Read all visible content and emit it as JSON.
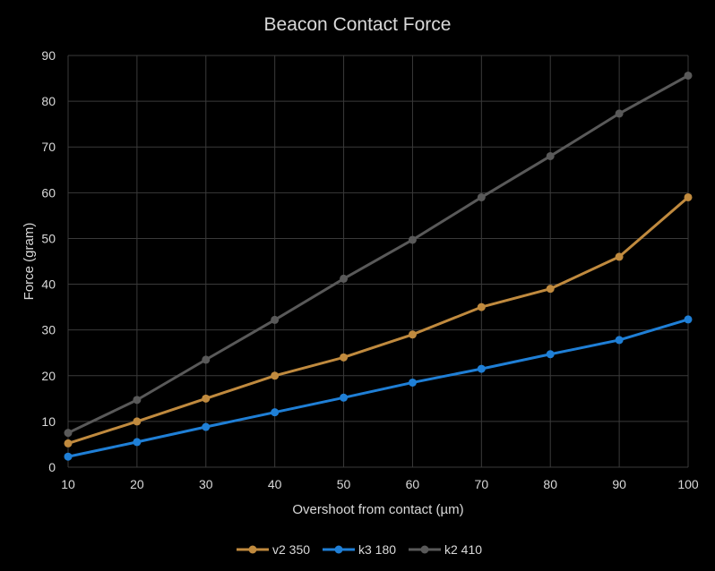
{
  "chart_data": {
    "type": "line",
    "title": "Beacon Contact Force",
    "xlabel": "Overshoot from contact (µm)",
    "ylabel": "Force (gram)",
    "x": [
      10,
      20,
      30,
      40,
      50,
      60,
      70,
      80,
      90,
      100
    ],
    "xlim": [
      10,
      100
    ],
    "ylim": [
      0,
      90
    ],
    "x_ticks": [
      "10",
      "20",
      "30",
      "40",
      "50",
      "60",
      "70",
      "80",
      "90",
      "100"
    ],
    "y_ticks": [
      "0",
      "10",
      "20",
      "30",
      "40",
      "50",
      "60",
      "70",
      "80",
      "90"
    ],
    "grid": true,
    "legend_position": "bottom",
    "series": [
      {
        "name": "v2 350",
        "color": "#c08a3e",
        "values": [
          5.2,
          10.0,
          15.0,
          20.0,
          24.0,
          29.0,
          35.0,
          39.0,
          46.0,
          59.0
        ]
      },
      {
        "name": "k3 180",
        "color": "#1f7fd6",
        "values": [
          2.3,
          5.5,
          8.8,
          12.0,
          15.2,
          18.5,
          21.5,
          24.7,
          27.8,
          32.3
        ]
      },
      {
        "name": "k2 410",
        "color": "#595959",
        "values": [
          7.5,
          14.7,
          23.5,
          32.2,
          41.2,
          49.7,
          59.0,
          68.0,
          77.3,
          85.6
        ]
      }
    ]
  }
}
